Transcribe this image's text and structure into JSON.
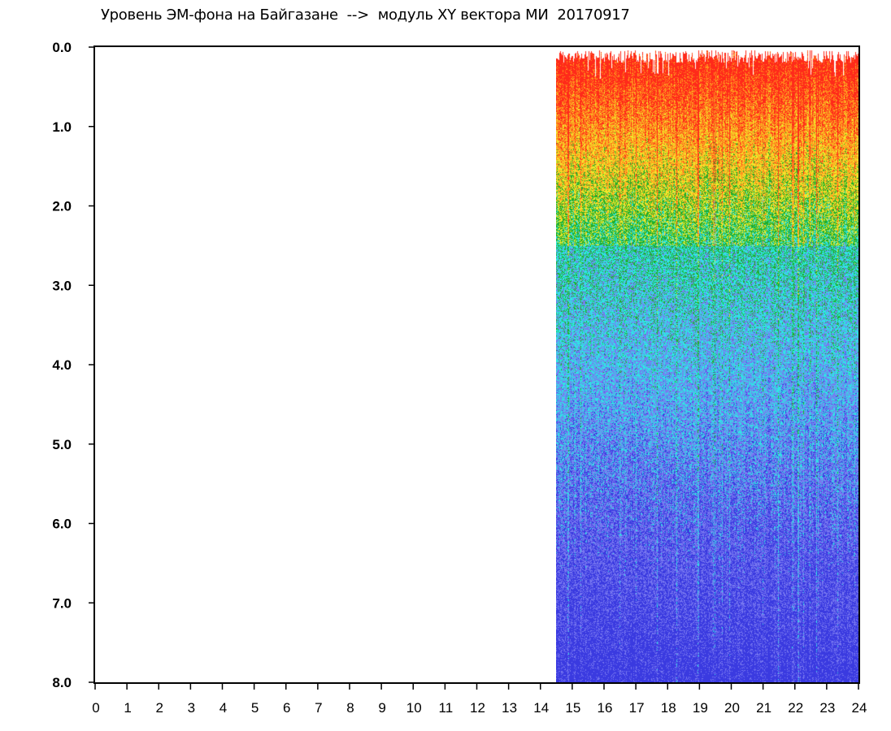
{
  "chart_data": {
    "type": "heatmap",
    "title": "Уровень ЭМ-фона на Байгазане  -->  модуль XY вектора МИ  20170917",
    "xlabel": "",
    "ylabel": "",
    "x_ticks": [
      "0",
      "1",
      "2",
      "3",
      "4",
      "5",
      "6",
      "7",
      "8",
      "9",
      "10",
      "11",
      "12",
      "13",
      "14",
      "15",
      "16",
      "17",
      "18",
      "19",
      "20",
      "21",
      "22",
      "23",
      "24"
    ],
    "y_ticks": [
      "0.0",
      "1.0",
      "2.0",
      "3.0",
      "4.0",
      "5.0",
      "6.0",
      "7.0",
      "8.0"
    ],
    "xlim": [
      0,
      24
    ],
    "ylim": [
      0,
      8
    ],
    "y_inverted": true,
    "data_start_hour": 14.5,
    "data_end_hour": 24,
    "grid": false,
    "colors": {
      "highest": "#ff2a1a",
      "high": "#f2e82a",
      "medium": "#1fae2a",
      "low": "#2ee6e6",
      "lowest": "#3a3ae0"
    }
  }
}
